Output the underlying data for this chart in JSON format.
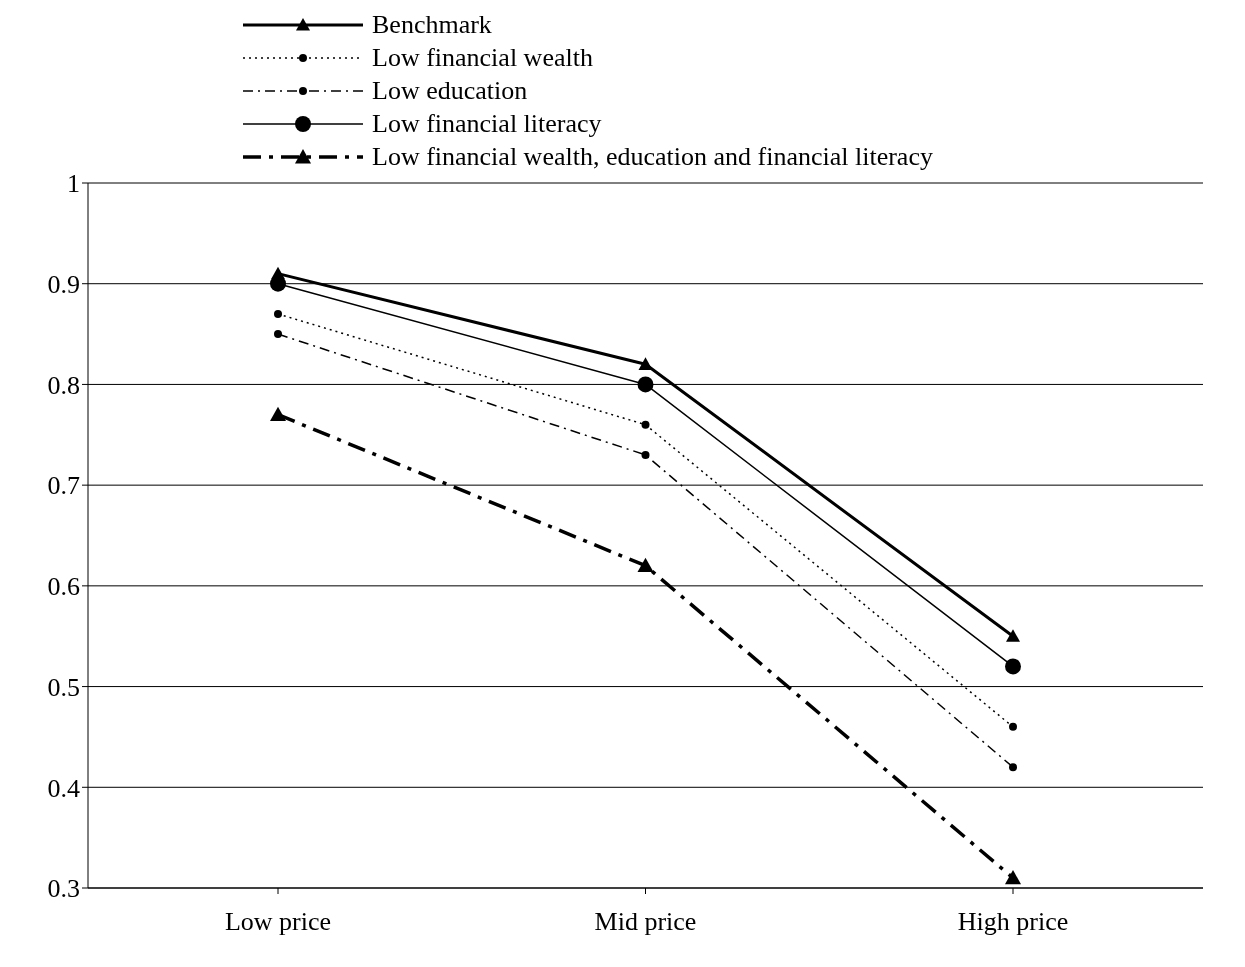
{
  "chart_data": {
    "type": "line",
    "categories": [
      "Low price",
      "Mid price",
      "High price"
    ],
    "series": [
      {
        "name": "Benchmark",
        "color": "#000000",
        "values": [
          0.91,
          0.82,
          0.55
        ],
        "marker": "triangle",
        "line_style": "solid"
      },
      {
        "name": "Low financial wealth",
        "color": "#000000",
        "values": [
          0.87,
          0.76,
          0.46
        ],
        "marker": "circle",
        "line_style": "dotted"
      },
      {
        "name": "Low education",
        "color": "#000000",
        "values": [
          0.85,
          0.73,
          0.42
        ],
        "marker": "circle",
        "line_style": "dashed"
      },
      {
        "name": "Low financial literacy",
        "color": "#000000",
        "values": [
          0.9,
          0.8,
          0.52
        ],
        "marker": "circle",
        "line_style": "solid"
      },
      {
        "name": "Low financial wealth, education and financial literacy",
        "color": "#000000",
        "values": [
          0.77,
          0.62,
          0.31
        ],
        "marker": "triangle",
        "line_style": "dashed"
      }
    ],
    "ylim": [
      0.3,
      1
    ],
    "yticks": [
      0.3,
      0.4,
      0.5,
      0.6,
      0.7,
      0.8,
      0.9,
      1
    ],
    "grid": "y",
    "legend": "top"
  }
}
